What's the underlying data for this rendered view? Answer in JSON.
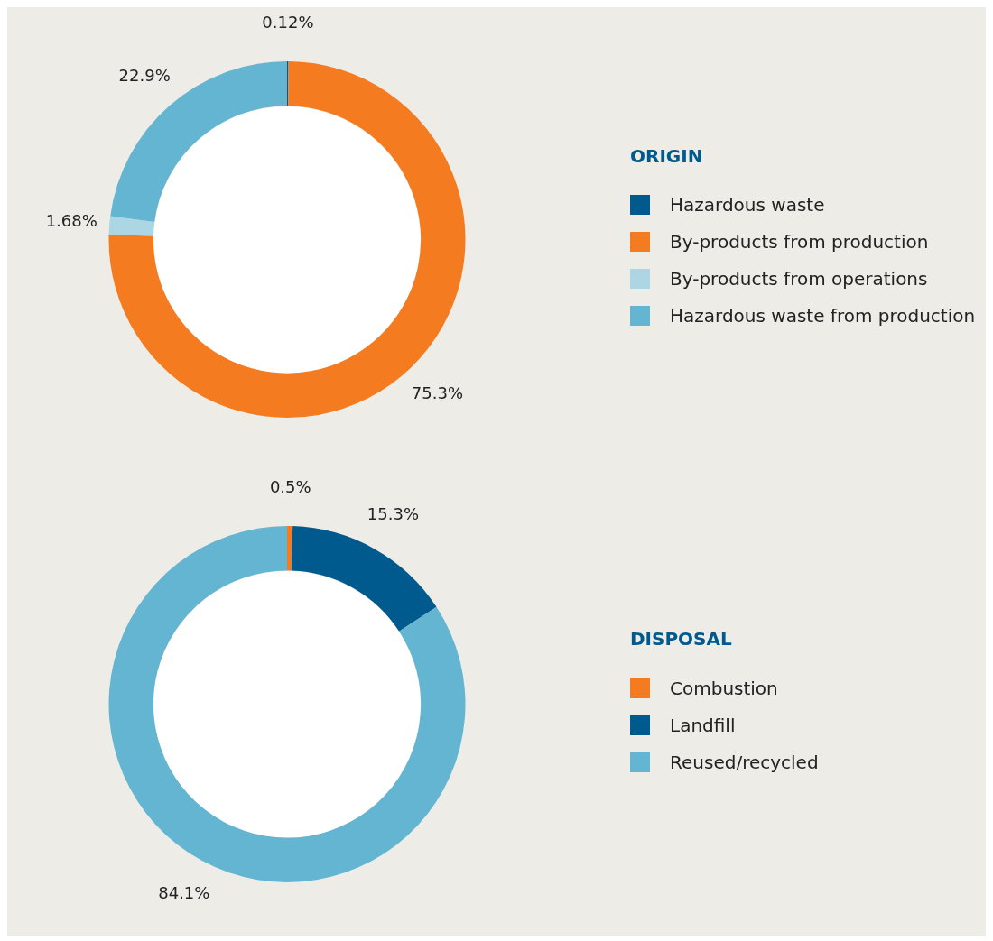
{
  "chart_data": [
    {
      "type": "donut",
      "legend_title": "ORIGIN",
      "legend": "right",
      "value_labels": [
        "0.12%",
        "75.3%",
        "1.68%",
        "22.9%"
      ],
      "categories": [
        "Hazardous waste",
        "By-products from production",
        "By-products from operations",
        "Hazardous waste from production"
      ],
      "values": [
        0.12,
        75.3,
        1.68,
        22.9
      ],
      "colors": [
        "#005a8e",
        "#f47b20",
        "#acd6e3",
        "#64b5d1"
      ]
    },
    {
      "type": "donut",
      "legend_title": "DISPOSAL",
      "legend": "right",
      "value_labels": [
        "0.5%",
        "15.3%",
        "84.1%"
      ],
      "categories": [
        "Combustion",
        "Landfill",
        "Reused/recycled"
      ],
      "values": [
        0.5,
        15.3,
        84.1
      ],
      "colors": [
        "#f47b20",
        "#005a8e",
        "#64b5d1"
      ]
    }
  ]
}
